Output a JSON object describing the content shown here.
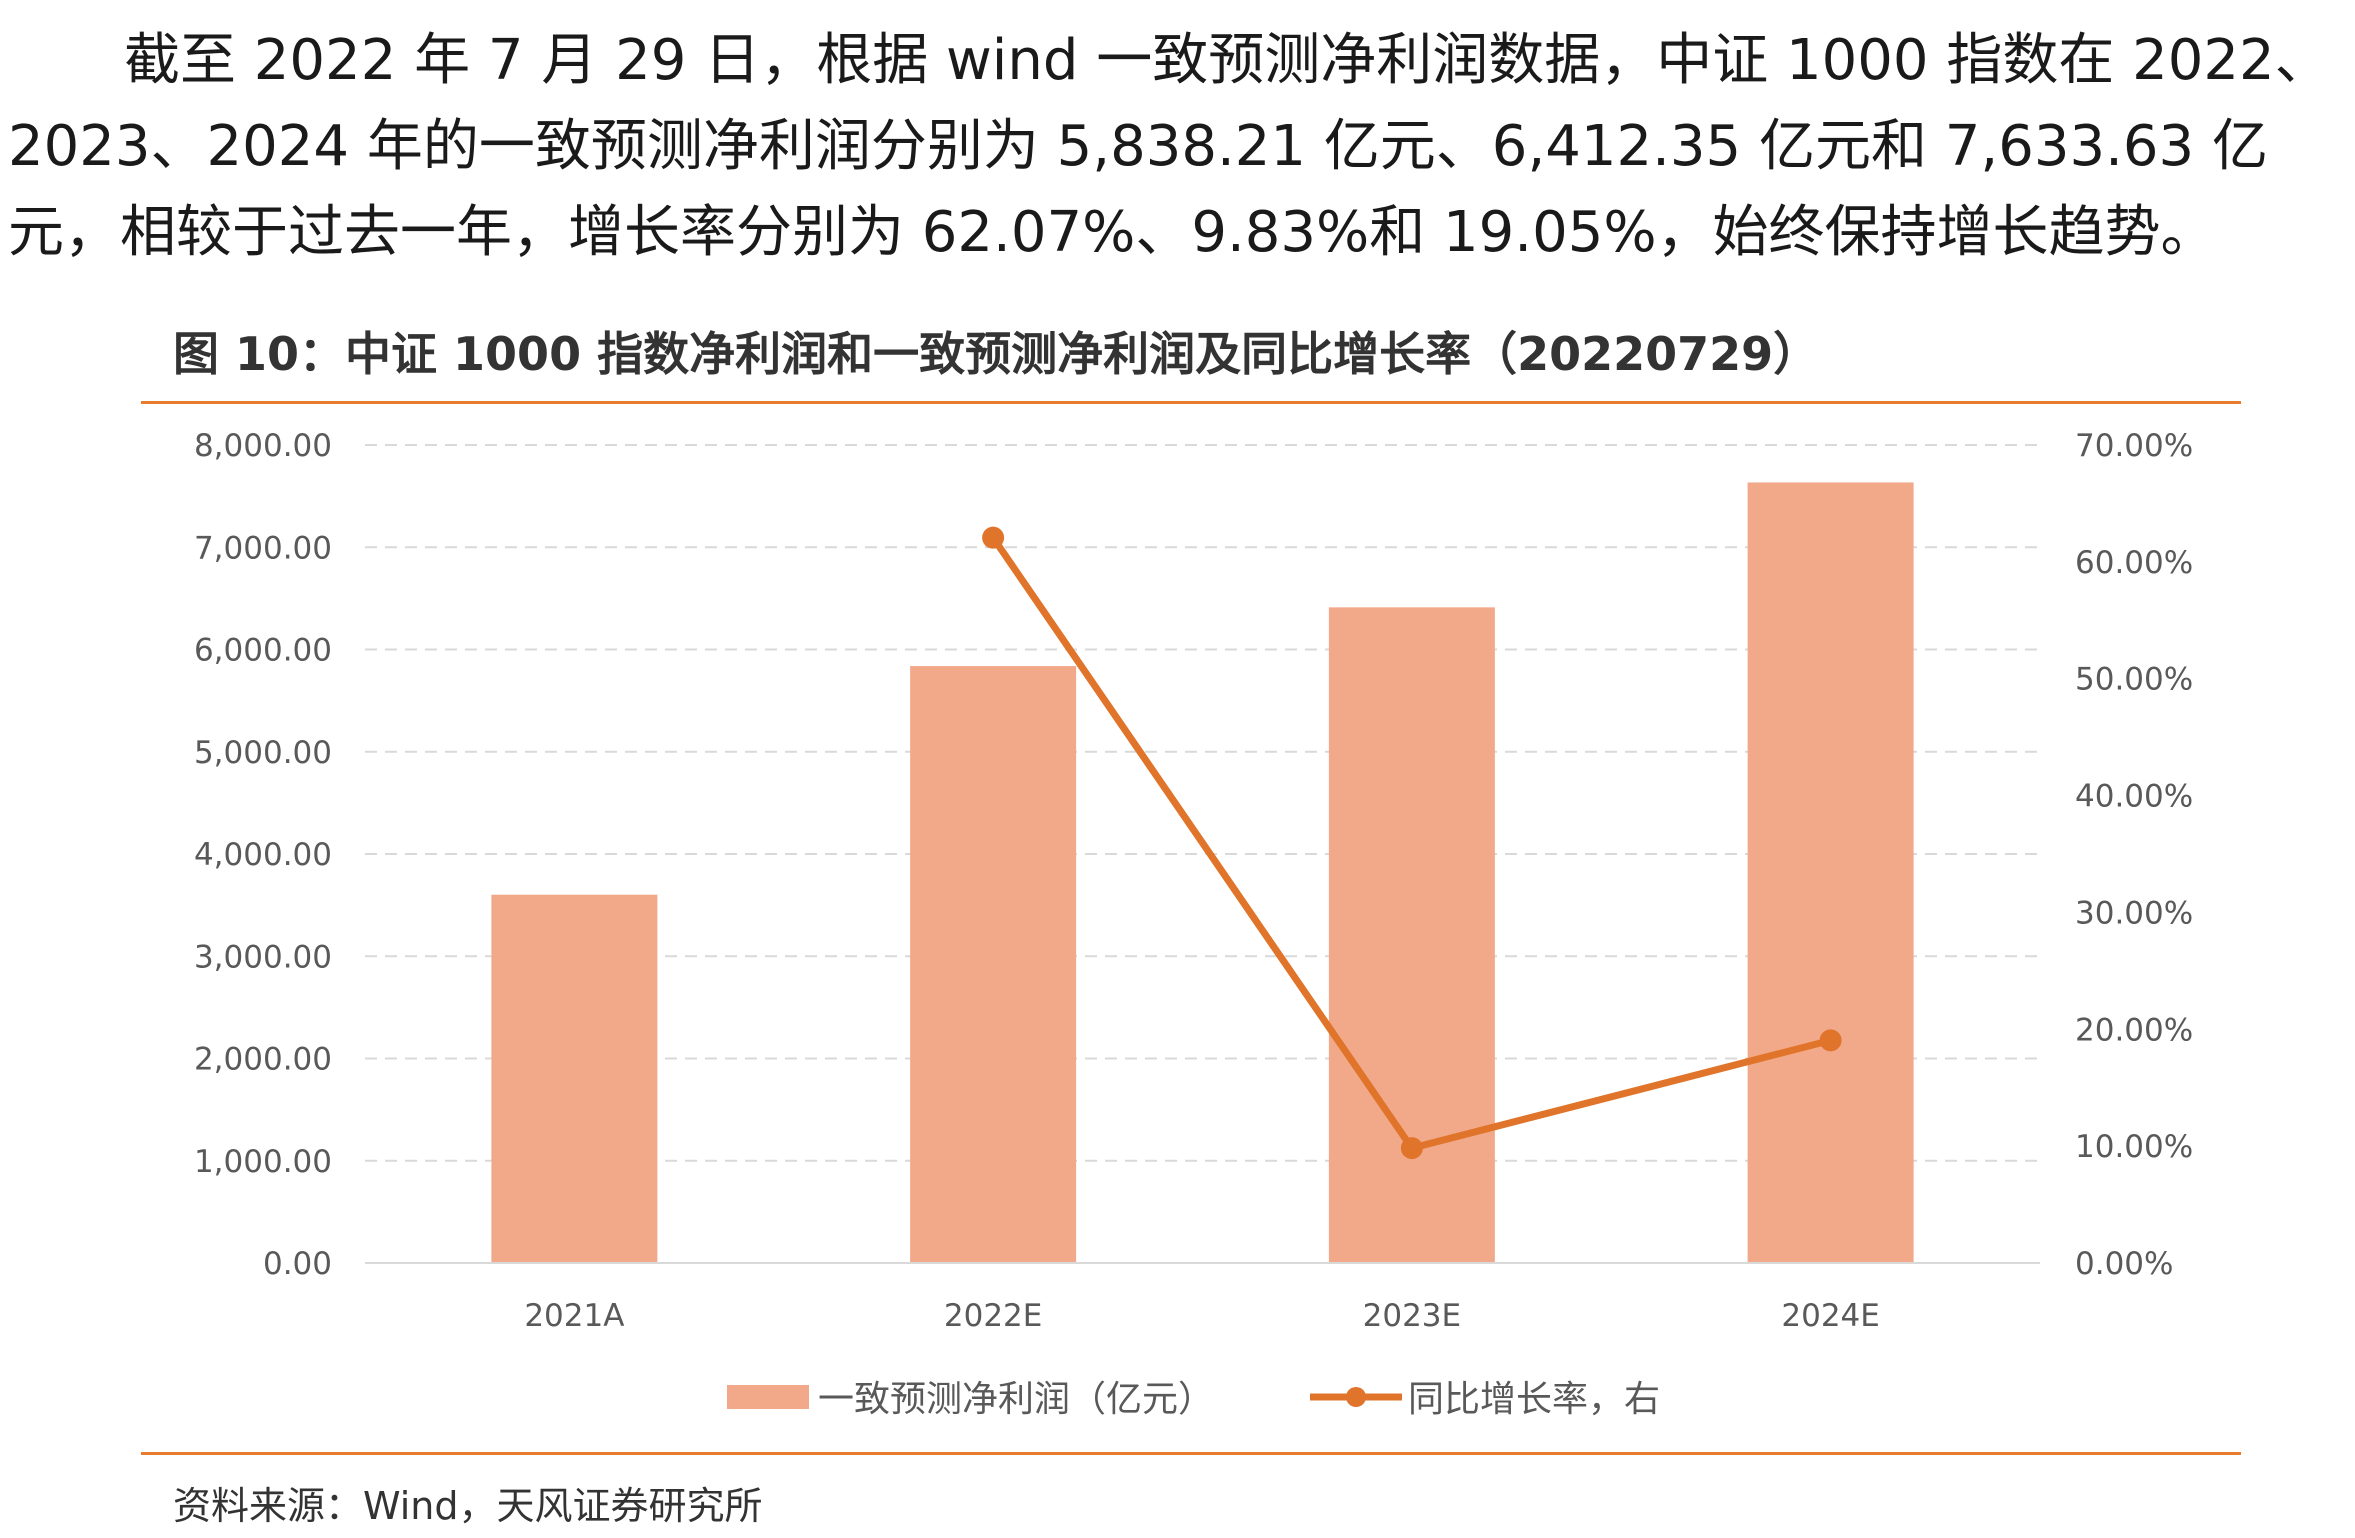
{
  "paragraph": "截至 2022 年 7 月 29 日，根据 wind 一致预测净利润数据，中证 1000 指数在 2022、2023、2024 年的一致预测净利润分别为 5,838.21 亿元、6,412.35 亿元和 7,633.63 亿元，相较于过去一年，增长率分别为 62.07%、9.83%和 19.05%，始终保持增长趋势。",
  "figure_title": "图 10：中证 1000 指数净利润和一致预测净利润及同比增长率（20220729）",
  "source": "资料来源：Wind，天风证券研究所",
  "colors": {
    "bar": "#f2a98a",
    "line": "#e0742a",
    "rule": "#e87c2e",
    "grid": "#d9d9d9"
  },
  "chart_data": {
    "type": "bar",
    "categories": [
      "2021A",
      "2022E",
      "2023E",
      "2024E"
    ],
    "series": [
      {
        "name": "一致预测净利润（亿元）",
        "type": "bar",
        "axis": "left",
        "values": [
          3602,
          5838.21,
          6412.35,
          7633.63
        ]
      },
      {
        "name": "同比增长率，右",
        "type": "line",
        "axis": "right",
        "values": [
          null,
          62.07,
          9.83,
          19.05
        ]
      }
    ],
    "y_left": {
      "min": 0,
      "max": 8000,
      "step": 1000,
      "ticks": [
        "0.00",
        "1,000.00",
        "2,000.00",
        "3,000.00",
        "4,000.00",
        "5,000.00",
        "6,000.00",
        "7,000.00",
        "8,000.00"
      ]
    },
    "y_right": {
      "min": 0,
      "max": 70,
      "step": 10,
      "ticks": [
        "0.00%",
        "10.00%",
        "20.00%",
        "30.00%",
        "40.00%",
        "50.00%",
        "60.00%",
        "70.00%"
      ]
    },
    "legend": [
      "一致预测净利润（亿元）",
      "同比增长率，右"
    ],
    "grid": true
  }
}
